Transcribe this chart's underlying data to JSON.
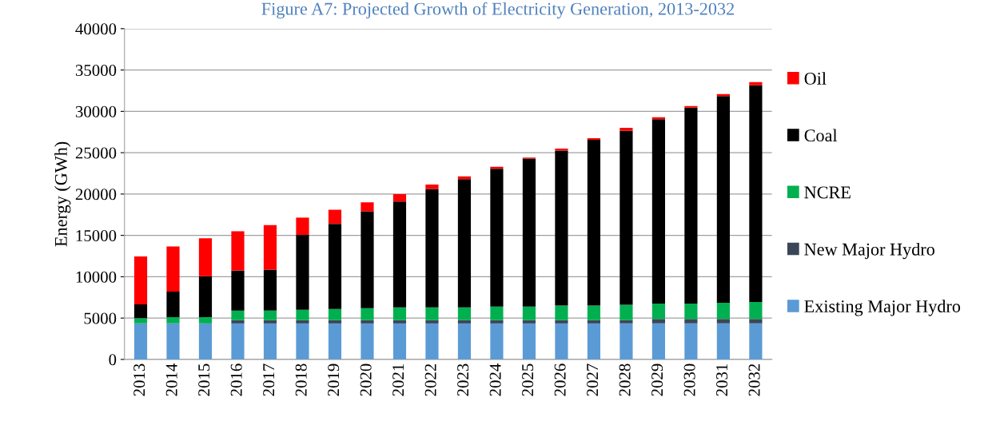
{
  "chart_data": {
    "type": "bar",
    "stacked": true,
    "title": "Figure A7: Projected Growth of Electricity Generation, 2013-2032",
    "ylabel": "Energy (GWh)",
    "categories": [
      "2013",
      "2014",
      "2015",
      "2016",
      "2017",
      "2018",
      "2019",
      "2020",
      "2021",
      "2022",
      "2023",
      "2024",
      "2025",
      "2026",
      "2027",
      "2028",
      "2029",
      "2030",
      "2031",
      "2032"
    ],
    "series": [
      {
        "name": "Existing Major Hydro",
        "color": "#5b9bd5",
        "values": [
          4350,
          4350,
          4350,
          4350,
          4350,
          4350,
          4350,
          4350,
          4350,
          4350,
          4350,
          4350,
          4350,
          4350,
          4350,
          4350,
          4350,
          4350,
          4350,
          4350
        ]
      },
      {
        "name": "New Major Hydro",
        "color": "#3a4658",
        "values": [
          0,
          0,
          0,
          400,
          400,
          400,
          400,
          400,
          400,
          400,
          400,
          400,
          400,
          400,
          400,
          400,
          550,
          550,
          550,
          550
        ]
      },
      {
        "name": "NCRE",
        "color": "#00b050",
        "values": [
          650,
          750,
          750,
          1150,
          1150,
          1250,
          1350,
          1450,
          1550,
          1550,
          1550,
          1650,
          1650,
          1750,
          1750,
          1850,
          1850,
          1850,
          1950,
          2050
        ]
      },
      {
        "name": "Coal",
        "color": "#000000",
        "values": [
          1650,
          3100,
          4950,
          4850,
          4950,
          9050,
          10300,
          11700,
          12800,
          14300,
          15500,
          16650,
          17900,
          18750,
          20050,
          21050,
          22300,
          23700,
          25000,
          26200
        ]
      },
      {
        "name": "Oil",
        "color": "#ff0000",
        "values": [
          5800,
          5450,
          4600,
          4750,
          5400,
          2100,
          1700,
          1100,
          900,
          550,
          350,
          250,
          120,
          250,
          200,
          350,
          250,
          200,
          230,
          400
        ]
      }
    ],
    "ylim": [
      0,
      40000
    ],
    "yticks": [
      0,
      5000,
      10000,
      15000,
      20000,
      25000,
      30000,
      35000,
      40000
    ],
    "grid": "y",
    "legend": "right"
  }
}
